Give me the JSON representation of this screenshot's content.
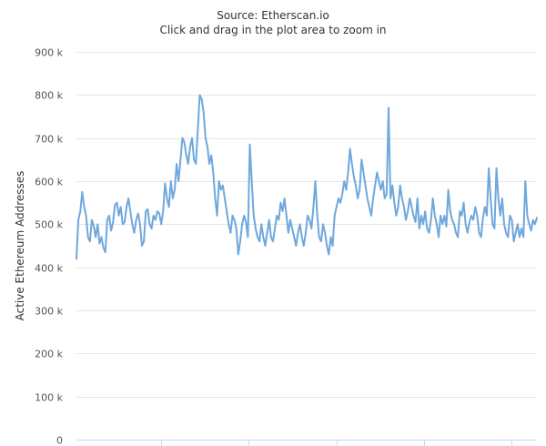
{
  "chart_data": {
    "type": "line",
    "subtitle_source": "Source: Etherscan.io",
    "subtitle_hint": "Click and drag in the plot area to zoom in",
    "ylabel": "Active Ethereum Addresses",
    "ylim": [
      0,
      900000
    ],
    "yticks": [
      0,
      100000,
      200000,
      300000,
      400000,
      500000,
      600000,
      700000,
      800000,
      900000
    ],
    "ytick_labels": [
      "0",
      "100 k",
      "200 k",
      "300 k",
      "400 k",
      "500 k",
      "600 k",
      "700 k",
      "800 k",
      "900 k"
    ],
    "x_tick_count": 5,
    "grid": true,
    "color": "#6fa8dc",
    "series": [
      {
        "values": [
          420000,
          510000,
          530000,
          575000,
          540000,
          520000,
          470000,
          460000,
          510000,
          495000,
          470000,
          500000,
          455000,
          470000,
          445000,
          435000,
          510000,
          520000,
          485000,
          505000,
          545000,
          550000,
          520000,
          540000,
          500000,
          505000,
          540000,
          560000,
          530000,
          500000,
          480000,
          510000,
          525000,
          500000,
          450000,
          460000,
          530000,
          535000,
          500000,
          490000,
          520000,
          510000,
          530000,
          525000,
          500000,
          530000,
          595000,
          560000,
          540000,
          600000,
          560000,
          580000,
          640000,
          600000,
          650000,
          700000,
          690000,
          660000,
          640000,
          680000,
          700000,
          650000,
          640000,
          720000,
          800000,
          790000,
          760000,
          700000,
          680000,
          640000,
          660000,
          620000,
          560000,
          520000,
          600000,
          580000,
          590000,
          560000,
          530000,
          500000,
          480000,
          520000,
          510000,
          490000,
          430000,
          460000,
          500000,
          520000,
          505000,
          470000,
          685000,
          600000,
          520000,
          490000,
          470000,
          460000,
          500000,
          470000,
          450000,
          480000,
          510000,
          470000,
          460000,
          490000,
          520000,
          510000,
          550000,
          530000,
          560000,
          520000,
          480000,
          510000,
          490000,
          470000,
          450000,
          480000,
          500000,
          470000,
          450000,
          480000,
          520000,
          510000,
          490000,
          540000,
          600000,
          520000,
          470000,
          460000,
          500000,
          480000,
          450000,
          430000,
          470000,
          450000,
          520000,
          540000,
          560000,
          550000,
          570000,
          600000,
          580000,
          620000,
          675000,
          640000,
          610000,
          590000,
          560000,
          580000,
          650000,
          620000,
          590000,
          560000,
          540000,
          520000,
          560000,
          590000,
          620000,
          600000,
          580000,
          600000,
          560000,
          570000,
          770000,
          560000,
          590000,
          550000,
          520000,
          540000,
          590000,
          560000,
          540000,
          510000,
          530000,
          560000,
          540000,
          520000,
          505000,
          560000,
          490000,
          520000,
          500000,
          530000,
          490000,
          480000,
          510000,
          560000,
          520000,
          500000,
          470000,
          520000,
          500000,
          520000,
          495000,
          580000,
          530000,
          510000,
          500000,
          480000,
          470000,
          530000,
          520000,
          550000,
          500000,
          480000,
          505000,
          520000,
          510000,
          540000,
          520000,
          480000,
          470000,
          515000,
          540000,
          520000,
          630000,
          560000,
          500000,
          490000,
          630000,
          560000,
          520000,
          560000,
          500000,
          480000,
          470000,
          520000,
          510000,
          460000,
          480000,
          500000,
          470000,
          490000,
          470000,
          600000,
          520000,
          500000,
          485000,
          510000,
          500000,
          515000
        ]
      }
    ]
  }
}
